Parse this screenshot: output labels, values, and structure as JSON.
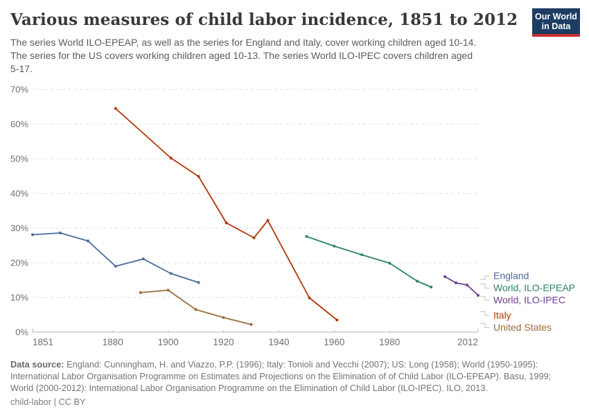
{
  "header": {
    "title": "Various measures of child labor incidence, 1851 to 2012",
    "logo": {
      "line1": "Our World",
      "line2": "in Data"
    }
  },
  "subtitle": {
    "lines": [
      "The series World ILO-EPEAP, as well as the series for England and Italy, cover working children aged 10-14.",
      "The series for the US covers working children aged 10-13. The series World ILO-IPEC covers children aged",
      "5-17."
    ]
  },
  "chart_data": {
    "type": "line",
    "title": "Various measures of child labor incidence, 1851 to 2012",
    "xlabel": "",
    "ylabel": "",
    "xlim": [
      1851,
      2012
    ],
    "ylim": [
      0,
      70
    ],
    "x_ticks": [
      1851,
      1880,
      1900,
      1920,
      1940,
      1960,
      1980,
      2012
    ],
    "y_ticks": [
      0,
      10,
      20,
      30,
      40,
      50,
      60,
      70
    ],
    "y_tick_suffix": "%",
    "grid": "horizontal-dashed",
    "legend_position": "right",
    "colors": {
      "grid": "#e2e2e2",
      "axis": "#c4c4c4",
      "tick_label": "#6e6e6e",
      "leader": "#cccccc"
    },
    "series": [
      {
        "name": "England",
        "color": "#4C6A9C",
        "points": [
          [
            1851,
            28.1
          ],
          [
            1861,
            28.6
          ],
          [
            1871,
            26.3
          ],
          [
            1881,
            19.0
          ],
          [
            1891,
            21.1
          ],
          [
            1901,
            16.9
          ],
          [
            1911,
            14.3
          ]
        ]
      },
      {
        "name": "World, ILO-EPEAP",
        "color": "#2C8465",
        "points": [
          [
            1950,
            27.6
          ],
          [
            1960,
            24.8
          ],
          [
            1970,
            22.3
          ],
          [
            1980,
            19.9
          ],
          [
            1990,
            14.7
          ],
          [
            1995,
            13.0
          ]
        ]
      },
      {
        "name": "World, ILO-IPEC",
        "color": "#6D3E91",
        "points": [
          [
            2000,
            16.0
          ],
          [
            2004,
            14.2
          ],
          [
            2008,
            13.6
          ],
          [
            2012,
            10.6
          ]
        ]
      },
      {
        "name": "Italy",
        "color": "#B13507",
        "points": [
          [
            1881,
            64.5
          ],
          [
            1901,
            50.2
          ],
          [
            1911,
            44.9
          ],
          [
            1921,
            31.5
          ],
          [
            1931,
            27.2
          ],
          [
            1936,
            32.2
          ],
          [
            1951,
            9.9
          ],
          [
            1961,
            3.5
          ]
        ]
      },
      {
        "name": "United States",
        "color": "#996D39",
        "points": [
          [
            1890,
            11.4
          ],
          [
            1900,
            12.1
          ],
          [
            1910,
            6.5
          ],
          [
            1920,
            4.2
          ],
          [
            1930,
            2.2
          ]
        ]
      }
    ]
  },
  "footer": {
    "source_label": "Data source:",
    "source_lines": [
      "England: Cunningham, H. and Viazzo, P.P. (1996); Italy: Tonioli and Vecchi (2007); US: Long (1958); World (1950-1995):",
      "International Labor Organisation Programme on Estimates and Projections on the Elimination of of Child Labor (ILO-EPEAP). Basu, 1999;",
      "World (2000-2012): International Labor Organisation Programme on the Elimination of Child Labor (ILO-IPEC). ILO, 2013."
    ],
    "note": "child-labor | CC BY"
  }
}
